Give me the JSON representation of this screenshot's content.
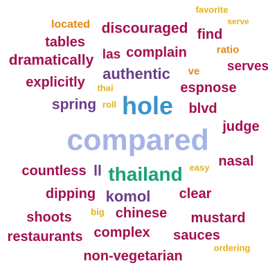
{
  "colors": {
    "crimson": "#a3114f",
    "purple": "#6a3d8a",
    "orange": "#e08a17",
    "yellow": "#e3b21b",
    "blue": "#3a93cc",
    "periwinkle": "#a5b4e6",
    "green": "#19a07a"
  },
  "words": [
    {
      "text": "favorite",
      "color": "#e3b21b"
    },
    {
      "text": "serve",
      "color": "#e3b21b"
    },
    {
      "text": "located",
      "color": "#e08a17"
    },
    {
      "text": "discouraged",
      "color": "#a3114f"
    },
    {
      "text": "find",
      "color": "#a3114f"
    },
    {
      "text": "tables",
      "color": "#a3114f"
    },
    {
      "text": "ratio",
      "color": "#e08a17"
    },
    {
      "text": "las",
      "color": "#a3114f"
    },
    {
      "text": "complain",
      "color": "#a3114f"
    },
    {
      "text": "dramatically",
      "color": "#a3114f"
    },
    {
      "text": "serves",
      "color": "#a3114f"
    },
    {
      "text": "authentic",
      "color": "#6a3d8a"
    },
    {
      "text": "ve",
      "color": "#e08a17"
    },
    {
      "text": "explicitly",
      "color": "#a3114f"
    },
    {
      "text": "thai",
      "color": "#e3b21b"
    },
    {
      "text": "espnose",
      "color": "#a3114f"
    },
    {
      "text": "spring",
      "color": "#6a3d8a"
    },
    {
      "text": "roll",
      "color": "#e3b21b"
    },
    {
      "text": "hole",
      "color": "#3a93cc"
    },
    {
      "text": "blvd",
      "color": "#a3114f"
    },
    {
      "text": "judge",
      "color": "#a3114f"
    },
    {
      "text": "compared",
      "color": "#a5b4e6"
    },
    {
      "text": "nasal",
      "color": "#a3114f"
    },
    {
      "text": "countless",
      "color": "#a3114f"
    },
    {
      "text": "ll",
      "color": "#6a3d8a"
    },
    {
      "text": "thailand",
      "color": "#19a07a"
    },
    {
      "text": "easy",
      "color": "#e3b21b"
    },
    {
      "text": "dipping",
      "color": "#a3114f"
    },
    {
      "text": "komol",
      "color": "#6a3d8a"
    },
    {
      "text": "clear",
      "color": "#a3114f"
    },
    {
      "text": "shoots",
      "color": "#a3114f"
    },
    {
      "text": "big",
      "color": "#e3b21b"
    },
    {
      "text": "chinese",
      "color": "#a3114f"
    },
    {
      "text": "mustard",
      "color": "#a3114f"
    },
    {
      "text": "restaurants",
      "color": "#a3114f"
    },
    {
      "text": "complex",
      "color": "#a3114f"
    },
    {
      "text": "sauces",
      "color": "#a3114f"
    },
    {
      "text": "ordering",
      "color": "#e3b21b"
    },
    {
      "text": "non-vegetarian",
      "color": "#a3114f"
    }
  ]
}
